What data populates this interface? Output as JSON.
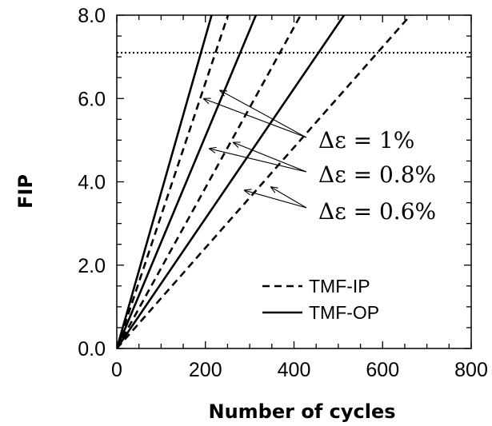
{
  "chart_data": {
    "type": "line",
    "xlabel": "Number of cycles",
    "ylabel": "FIP",
    "xlim": [
      0,
      800
    ],
    "ylim": [
      0,
      8
    ],
    "x_ticks": [
      "0",
      "200",
      "400",
      "600",
      "800"
    ],
    "y_ticks": [
      "0.0",
      "2.0",
      "4.0",
      "6.0",
      "8.0"
    ],
    "x_minor_step": 50,
    "y_minor_step": 0.5,
    "grid": false,
    "legend_position": "bottom-right",
    "reference_line": {
      "y": 7.1,
      "style": "dotted"
    },
    "legend": [
      {
        "label": "TMF-IP",
        "style": "dashed"
      },
      {
        "label": "TMF-OP",
        "style": "solid"
      }
    ],
    "series": [
      {
        "group": "TMF-OP",
        "strain": "Δε = 1%",
        "style": "solid",
        "x": [
          0,
          214
        ],
        "y": [
          0,
          8
        ]
      },
      {
        "group": "TMF-IP",
        "strain": "Δε = 1%",
        "style": "dashed",
        "x": [
          0,
          251
        ],
        "y": [
          0,
          8
        ]
      },
      {
        "group": "TMF-OP",
        "strain": "Δε = 0.8%",
        "style": "solid",
        "x": [
          0,
          314
        ],
        "y": [
          0,
          8
        ]
      },
      {
        "group": "TMF-IP",
        "strain": "Δε = 0.8%",
        "style": "dashed",
        "x": [
          0,
          415
        ],
        "y": [
          0,
          8
        ]
      },
      {
        "group": "TMF-OP",
        "strain": "Δε = 0.6%",
        "style": "solid",
        "x": [
          0,
          513
        ],
        "y": [
          0,
          8
        ]
      },
      {
        "group": "TMF-IP",
        "strain": "Δε = 0.6%",
        "style": "dashed",
        "x": [
          0,
          663
        ],
        "y": [
          0,
          8
        ]
      }
    ],
    "annotations": [
      {
        "text": "Δε = 1%",
        "arrows_to": [
          [
            195,
            6.0
          ],
          [
            232,
            6.2
          ]
        ]
      },
      {
        "text": "Δε = 0.8%",
        "arrows_to": [
          [
            208,
            4.8
          ],
          [
            262,
            4.95
          ]
        ]
      },
      {
        "text": "Δε = 0.6%",
        "arrows_to": [
          [
            287,
            3.8
          ],
          [
            347,
            3.88
          ]
        ]
      }
    ]
  }
}
